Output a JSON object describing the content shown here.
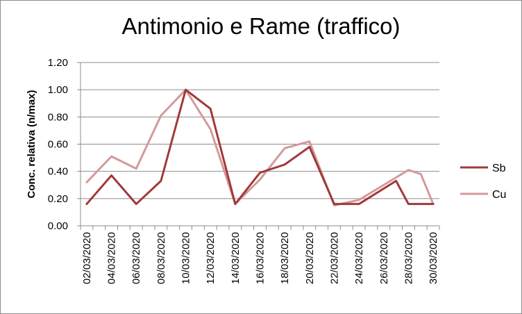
{
  "chart_data": {
    "type": "line",
    "title": "Antimonio e Rame (traffico)",
    "xlabel": "",
    "ylabel": "Conc. relativa (n/max)",
    "ylim": [
      0,
      1.2
    ],
    "ytick_labels": [
      "0.00",
      "0.20",
      "0.40",
      "0.60",
      "0.80",
      "1.00",
      "1.20"
    ],
    "ytick_values": [
      0,
      0.2,
      0.4,
      0.6,
      0.8,
      1.0,
      1.2
    ],
    "grid": true,
    "legend_position": "right",
    "x_ticks": [
      "02/03/2020",
      "04/03/2020",
      "06/03/2020",
      "08/03/2020",
      "10/03/2020",
      "12/03/2020",
      "14/03/2020",
      "16/03/2020",
      "18/03/2020",
      "20/03/2020",
      "22/03/2020",
      "24/03/2020",
      "26/03/2020",
      "28/03/2020",
      "30/03/2020"
    ],
    "x": [
      "02/03/2020",
      "03/03/2020",
      "04/03/2020",
      "05/03/2020",
      "06/03/2020",
      "07/03/2020",
      "08/03/2020",
      "09/03/2020",
      "10/03/2020",
      "11/03/2020",
      "12/03/2020",
      "13/03/2020",
      "14/03/2020",
      "15/03/2020",
      "16/03/2020",
      "17/03/2020",
      "18/03/2020",
      "19/03/2020",
      "20/03/2020",
      "21/03/2020",
      "22/03/2020",
      "23/03/2020",
      "24/03/2020",
      "25/03/2020",
      "26/03/2020",
      "27/03/2020",
      "28/03/2020",
      "29/03/2020",
      "30/03/2020"
    ],
    "series": [
      {
        "name": "Sb",
        "color": "#a0393a",
        "values": [
          0.16,
          null,
          0.37,
          null,
          0.16,
          null,
          0.33,
          null,
          1.0,
          null,
          0.86,
          null,
          0.16,
          null,
          0.39,
          null,
          0.45,
          null,
          0.58,
          null,
          0.16,
          null,
          0.16,
          null,
          null,
          0.33,
          0.16,
          null,
          0.16
        ]
      },
      {
        "name": "Cu",
        "color": "#d4999a",
        "values": [
          0.32,
          null,
          0.51,
          null,
          0.42,
          null,
          0.81,
          null,
          1.0,
          null,
          0.71,
          null,
          0.16,
          null,
          0.34,
          null,
          0.57,
          null,
          0.62,
          null,
          0.15,
          null,
          0.19,
          null,
          null,
          null,
          0.41,
          0.38,
          0.16
        ]
      }
    ]
  }
}
